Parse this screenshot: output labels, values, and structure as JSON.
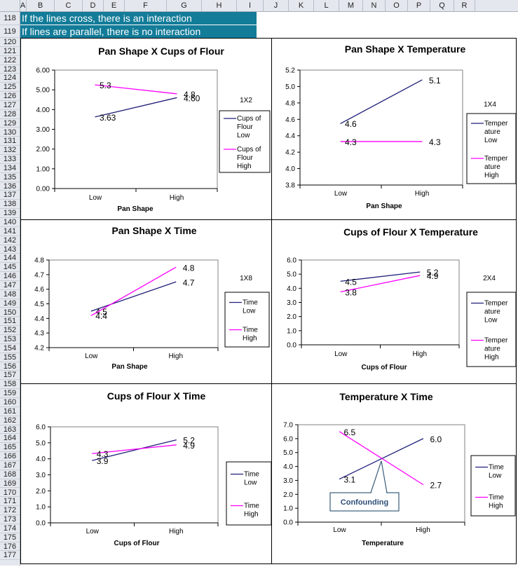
{
  "columns": [
    "A",
    "B",
    "C",
    "D",
    "E",
    "F",
    "G",
    "H",
    "I",
    "J",
    "K",
    "L",
    "M",
    "N",
    "O",
    "P",
    "Q",
    "R"
  ],
  "rows": [
    "118",
    "119",
    "120",
    "121",
    "122",
    "123",
    "124",
    "125",
    "126",
    "127",
    "128",
    "129",
    "130",
    "131",
    "132",
    "133",
    "134",
    "135",
    "136",
    "137",
    "138",
    "139",
    "140",
    "141",
    "142",
    "143",
    "144",
    "145",
    "146",
    "147",
    "148",
    "149",
    "150",
    "151",
    "152",
    "153",
    "154",
    "155",
    "156",
    "157",
    "158",
    "159",
    "160",
    "161",
    "162",
    "163",
    "164",
    "165",
    "166",
    "167",
    "168",
    "169",
    "170",
    "171",
    "172",
    "173",
    "174",
    "175",
    "176",
    "177"
  ],
  "banner": {
    "line1": "If the lines cross, there is an interaction",
    "line2": "If lines are parallel, there is no interaction"
  },
  "colors": {
    "low": "#1f1f7a",
    "high": "#ff00ff",
    "banner_bg": "#137c99"
  },
  "chart_data": [
    {
      "type": "line",
      "title": "Pan Shape X Cups of Flour",
      "xlabel": "Pan Shape",
      "ylabel": "",
      "categories": [
        "Low",
        "High"
      ],
      "ylim": [
        0,
        6
      ],
      "yticks": [
        "0.00",
        "1.00",
        "2.00",
        "3.00",
        "4.00",
        "5.00",
        "6.00"
      ],
      "code": "1X2",
      "series": [
        {
          "name": "Cups of Flour Low",
          "legend": [
            "Cups of",
            "Flour",
            "Low"
          ],
          "values": [
            3.63,
            4.6
          ],
          "labels": [
            "3.63",
            "4.60"
          ]
        },
        {
          "name": "Cups of Flour High",
          "legend": [
            "Cups of",
            "Flour",
            "High"
          ],
          "values": [
            5.25,
            4.8
          ],
          "labels": [
            "5.3",
            "4.8"
          ]
        }
      ]
    },
    {
      "type": "line",
      "title": "Pan Shape X Temperature",
      "xlabel": "Pan Shape",
      "ylabel": "",
      "categories": [
        "Low",
        "High"
      ],
      "ylim": [
        3.8,
        5.2
      ],
      "yticks": [
        "3.8",
        "4.0",
        "4.2",
        "4.4",
        "4.6",
        "4.8",
        "5.0",
        "5.2"
      ],
      "code": "1X4",
      "series": [
        {
          "name": "Temperature Low",
          "legend": [
            "Temper",
            "ature",
            "Low"
          ],
          "values": [
            4.55,
            5.08
          ],
          "labels": [
            "4.6",
            "5.1"
          ]
        },
        {
          "name": "Temperature High",
          "legend": [
            "Temper",
            "ature",
            "High"
          ],
          "values": [
            4.33,
            4.33
          ],
          "labels": [
            "4.3",
            "4.3"
          ]
        }
      ]
    },
    {
      "type": "line",
      "title": "Pan Shape X Time",
      "xlabel": "Pan Shape",
      "ylabel": "",
      "categories": [
        "Low",
        "High"
      ],
      "ylim": [
        4.2,
        4.8
      ],
      "yticks": [
        "4.2",
        "4.3",
        "4.4",
        "4.5",
        "4.6",
        "4.7",
        "4.8"
      ],
      "code": "1X8",
      "series": [
        {
          "name": "Time Low",
          "legend": [
            "Time",
            "Low"
          ],
          "values": [
            4.45,
            4.65
          ],
          "labels": [
            "4.5",
            "4.7"
          ]
        },
        {
          "name": "Time High",
          "legend": [
            "Time",
            "High"
          ],
          "values": [
            4.42,
            4.75
          ],
          "labels": [
            "4.4",
            "4.8"
          ]
        }
      ]
    },
    {
      "type": "line",
      "title": "Cups of Flour X Temperature",
      "xlabel": "Cups of Flour",
      "ylabel": "",
      "categories": [
        "Low",
        "High"
      ],
      "ylim": [
        0,
        6
      ],
      "yticks": [
        "0.0",
        "1.0",
        "2.0",
        "3.0",
        "4.0",
        "5.0",
        "6.0"
      ],
      "code": "2X4",
      "series": [
        {
          "name": "Temperature Low",
          "legend": [
            "Temper",
            "ature",
            "Low"
          ],
          "values": [
            4.5,
            5.15
          ],
          "labels": [
            "4.5",
            "5.2"
          ]
        },
        {
          "name": "Temperature High",
          "legend": [
            "Temper",
            "ature",
            "High"
          ],
          "values": [
            3.75,
            4.9
          ],
          "labels": [
            "3.8",
            "4.9"
          ]
        }
      ]
    },
    {
      "type": "line",
      "title": "Cups of Flour X Time",
      "xlabel": "Cups of Flour",
      "ylabel": "",
      "categories": [
        "Low",
        "High"
      ],
      "ylim": [
        0,
        6
      ],
      "yticks": [
        "0.0",
        "1.0",
        "2.0",
        "3.0",
        "4.0",
        "5.0",
        "6.0"
      ],
      "code": "",
      "series": [
        {
          "name": "Time Low",
          "legend": [
            "Time",
            "Low"
          ],
          "values": [
            3.9,
            5.18
          ],
          "labels": [
            "3.9",
            "5.2"
          ]
        },
        {
          "name": "Time High",
          "legend": [
            "Time",
            "High"
          ],
          "values": [
            4.33,
            4.87
          ],
          "labels": [
            "4.3",
            "4.9"
          ]
        }
      ]
    },
    {
      "type": "line",
      "title": "Temperature X Time",
      "xlabel": "Temperature",
      "ylabel": "",
      "categories": [
        "Low",
        "High"
      ],
      "ylim": [
        0,
        7
      ],
      "yticks": [
        "0.0",
        "1.0",
        "2.0",
        "3.0",
        "4.0",
        "5.0",
        "6.0",
        "7.0"
      ],
      "code": "",
      "annotation": "Confounding",
      "series": [
        {
          "name": "Time Low",
          "legend": [
            "Time",
            "Low"
          ],
          "values": [
            3.1,
            6.0
          ],
          "labels": [
            "3.1",
            "6.0"
          ]
        },
        {
          "name": "Time High",
          "legend": [
            "Time",
            "High"
          ],
          "values": [
            6.5,
            2.7
          ],
          "labels": [
            "6.5",
            "2.7"
          ]
        }
      ]
    }
  ]
}
